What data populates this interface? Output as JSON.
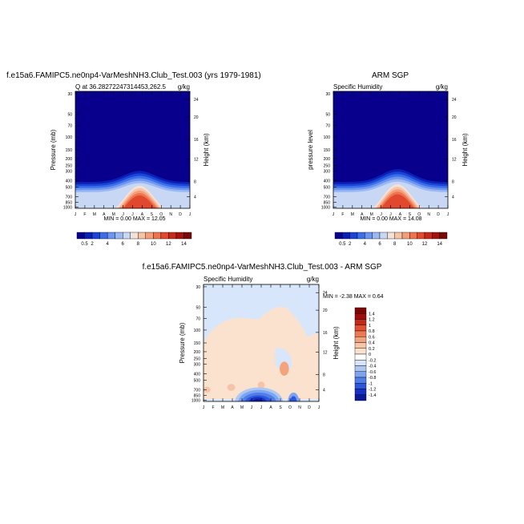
{
  "palettes": {
    "abs": [
      "#08008c",
      "#0a1fb4",
      "#1a45d8",
      "#3c6ee8",
      "#6b95ef",
      "#9bb8f2",
      "#c8d7f4",
      "#f4e2d6",
      "#f6c3a8",
      "#f49d79",
      "#ee744f",
      "#e0492d",
      "#c7281a",
      "#a4140f",
      "#7a0a07"
    ],
    "diff": [
      "#0a1a9a",
      "#1631c4",
      "#2c56de",
      "#4f7ee9",
      "#7ea4f0",
      "#adc7f5",
      "#d8e6fb",
      "#ffffff",
      "#fbe2cf",
      "#f8c6a7",
      "#f4a37d",
      "#ee7a53",
      "#e2512f",
      "#c52a17",
      "#9c0f0a",
      "#7e0503"
    ]
  },
  "months": [
    "J",
    "F",
    "M",
    "A",
    "M",
    "J",
    "J",
    "A",
    "S",
    "O",
    "N",
    "D",
    "J"
  ],
  "pressure_ticks": [
    "30",
    "50",
    "70",
    "100",
    "150",
    "200",
    "250",
    "300",
    "400",
    "500",
    "700",
    "850",
    "1000"
  ],
  "height_ticks": [
    "24",
    "20",
    "16",
    "12",
    "8",
    "4"
  ],
  "height_ticks_diff": [
    "24",
    "20",
    "16",
    "12",
    "8",
    "4"
  ],
  "panel1": {
    "title": "f.e15a6.FAMIPC5.ne0np4-VarMeshNH3.Club_Test.003 (yrs 1979-1981)",
    "left_label": "Q at 36.28272247314453,262.5",
    "right_label": "g/kg",
    "ylabel": "Pressure (mb)",
    "ylabel_right": "Height (km)",
    "stats": "MIN =  0.00 MAX =  12.05",
    "colorbar_labels": [
      "0.5",
      "2",
      "4",
      "6",
      "8",
      "10",
      "12",
      "14"
    ]
  },
  "panel2": {
    "title": "ARM SGP",
    "left_label": "Specific Humidity",
    "right_label": "g/kg",
    "ylabel": "pressure level",
    "ylabel_right": "Height (km)",
    "stats": "MIN =  0.00 MAX =  14.08",
    "colorbar_labels": [
      "0.5",
      "2",
      "4",
      "6",
      "8",
      "10",
      "12",
      "14"
    ]
  },
  "panel3": {
    "title": "f.e15a6.FAMIPC5.ne0np4-VarMeshNH3.Club_Test.003 - ARM SGP",
    "left_label": "Specific Humidity",
    "right_label": "g/kg",
    "ylabel": "Pressure (mb)",
    "ylabel_right": "Height (km)",
    "stats": "MIN =  -2.38 MAX =   0.64",
    "colorbar_labels": [
      "1.4",
      "1.2",
      "1",
      "0.8",
      "0.6",
      "0.4",
      "0.2",
      "0",
      "-0.2",
      "-0.4",
      "-0.6",
      "-0.8",
      "-1",
      "-1.2",
      "-1.4"
    ]
  },
  "chart_data": [
    {
      "type": "heatmap",
      "title": "f.e15a6.FAMIPC5.ne0np4-VarMeshNH3.Club_Test.003 (yrs 1979-1981)",
      "subtitle": "Q at 36.28272247314453,262.5",
      "units": "g/kg",
      "xlabel": "",
      "ylabel": "Pressure (mb)",
      "ylabel_right": "Height (km)",
      "x": [
        "J",
        "F",
        "M",
        "A",
        "M",
        "J",
        "J",
        "A",
        "S",
        "O",
        "N",
        "D",
        "J"
      ],
      "y_pressure": [
        30,
        50,
        70,
        100,
        150,
        200,
        250,
        300,
        400,
        500,
        700,
        850,
        1000
      ],
      "colorbar_levels": [
        0.5,
        2,
        4,
        6,
        8,
        10,
        12,
        14
      ],
      "min": 0.0,
      "max": 12.05
    },
    {
      "type": "heatmap",
      "title": "ARM SGP",
      "subtitle": "Specific Humidity",
      "units": "g/kg",
      "xlabel": "",
      "ylabel": "pressure level",
      "ylabel_right": "Height (km)",
      "x": [
        "J",
        "F",
        "M",
        "A",
        "M",
        "J",
        "J",
        "A",
        "S",
        "O",
        "N",
        "D",
        "J"
      ],
      "y_pressure": [
        30,
        50,
        70,
        100,
        150,
        200,
        250,
        300,
        400,
        500,
        700,
        850,
        1000
      ],
      "colorbar_levels": [
        0.5,
        2,
        4,
        6,
        8,
        10,
        12,
        14
      ],
      "min": 0.0,
      "max": 14.08
    },
    {
      "type": "heatmap",
      "title": "f.e15a6.FAMIPC5.ne0np4-VarMeshNH3.Club_Test.003 - ARM SGP",
      "subtitle": "Specific Humidity",
      "units": "g/kg",
      "xlabel": "",
      "ylabel": "Pressure (mb)",
      "ylabel_right": "Height (km)",
      "x": [
        "J",
        "F",
        "M",
        "A",
        "M",
        "J",
        "J",
        "A",
        "S",
        "O",
        "N",
        "D",
        "J"
      ],
      "y_pressure": [
        30,
        50,
        70,
        100,
        150,
        200,
        250,
        300,
        400,
        500,
        700,
        850,
        1000
      ],
      "colorbar_levels": [
        1.4,
        1.2,
        1,
        0.8,
        0.6,
        0.4,
        0.2,
        0,
        -0.2,
        -0.4,
        -0.6,
        -0.8,
        -1,
        -1.2,
        -1.4
      ],
      "min": -2.38,
      "max": 0.64
    }
  ]
}
